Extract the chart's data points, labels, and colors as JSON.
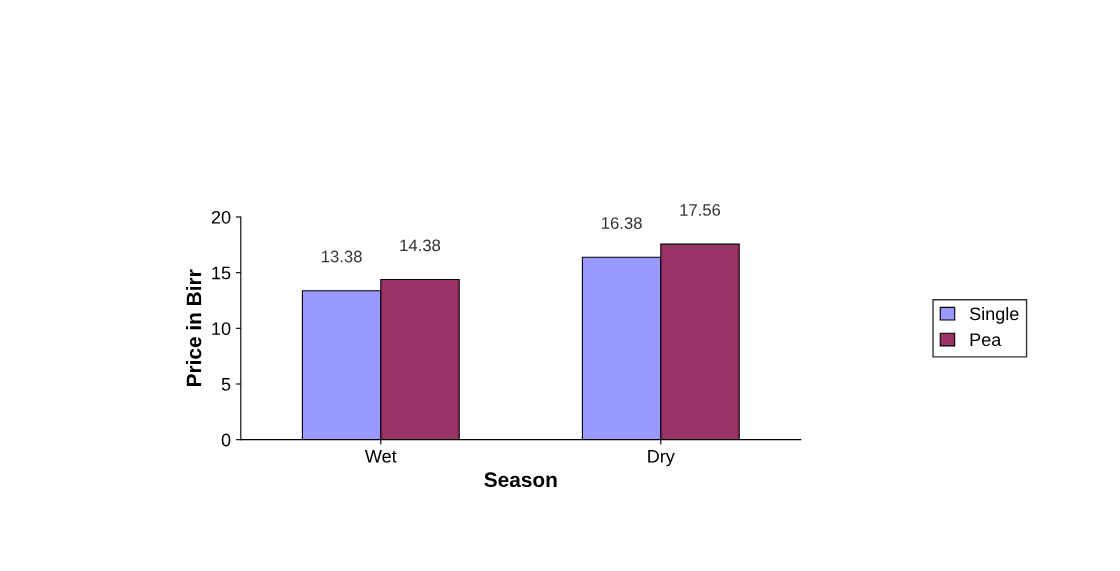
{
  "chart_data": {
    "type": "bar",
    "xlabel": "Season",
    "ylabel": "Price in Birr",
    "categories": [
      "Wet",
      "Dry"
    ],
    "series": [
      {
        "name": "Single",
        "color": "#9999ff",
        "values": [
          13.38,
          16.38
        ]
      },
      {
        "name": "Pea",
        "color": "#993366",
        "values": [
          14.38,
          17.56
        ]
      }
    ],
    "ylim": [
      0,
      20
    ],
    "yticks": [
      0,
      5,
      10,
      15,
      20
    ],
    "data_labels": true,
    "legend": "right",
    "grid": false
  }
}
